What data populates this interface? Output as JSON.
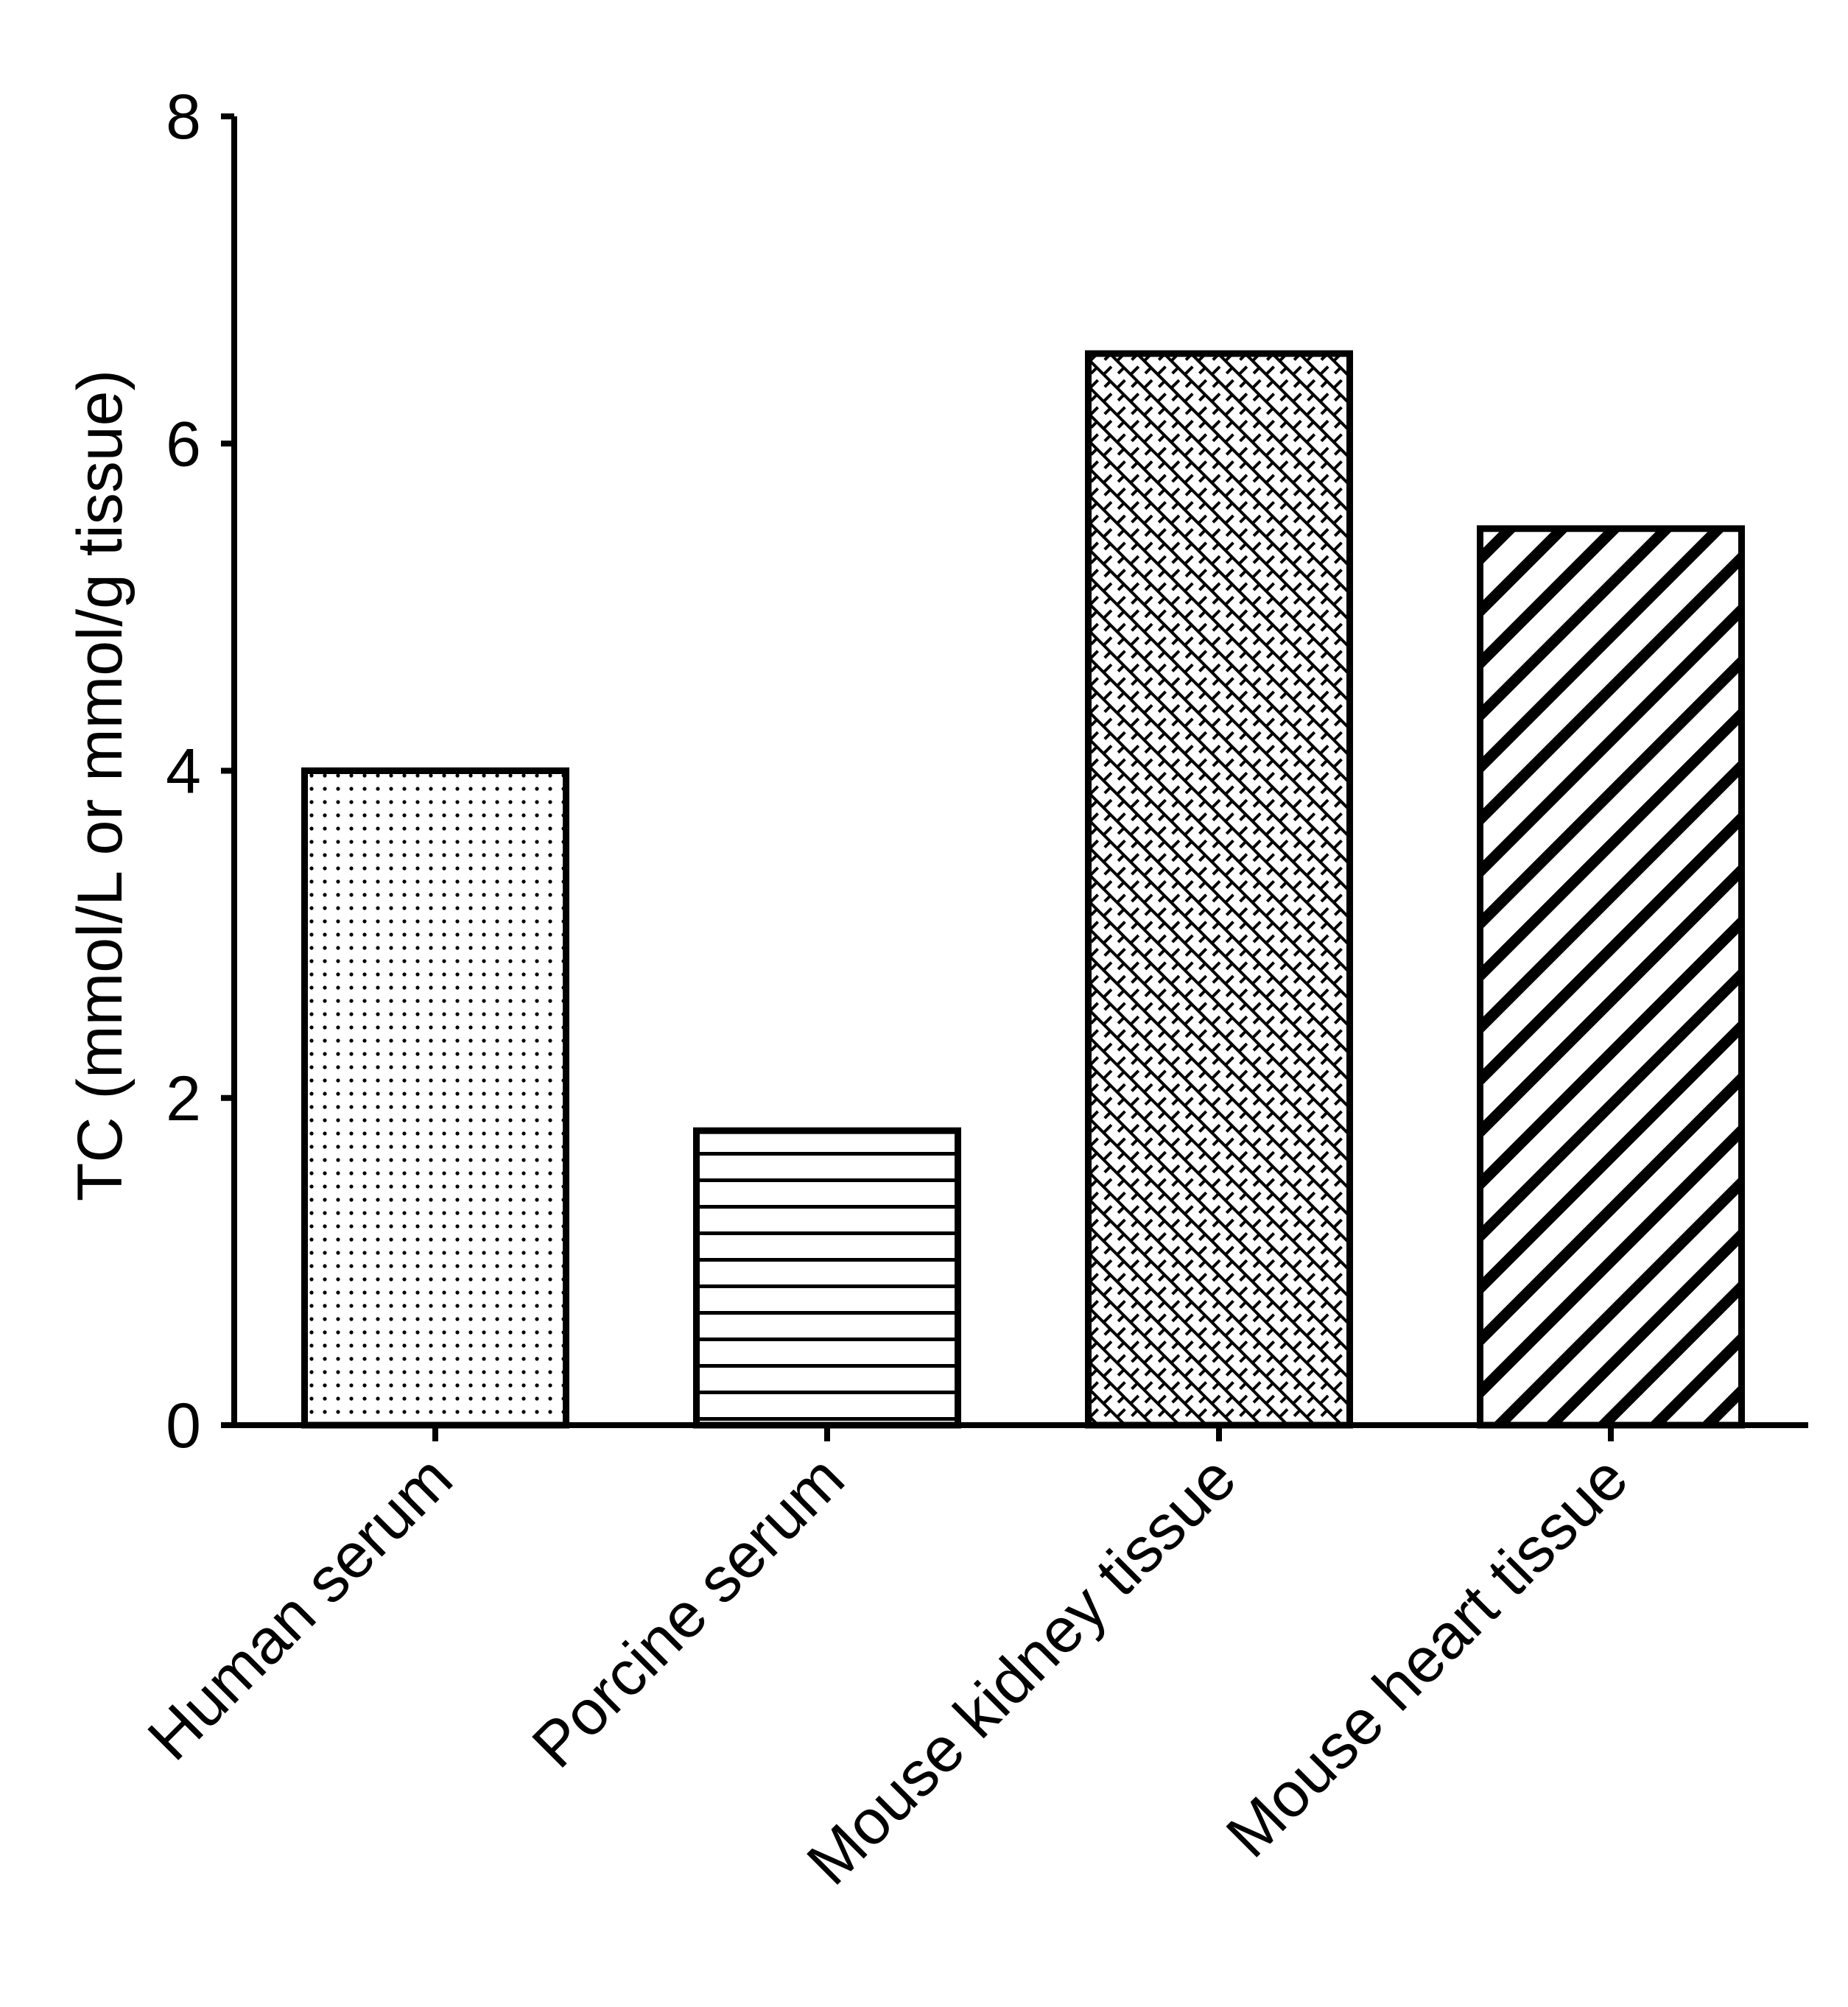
{
  "chart_data": {
    "type": "bar",
    "title": "",
    "xlabel": "",
    "ylabel": "TC (mmol/L or mmol/g tissue)",
    "categories": [
      "Human serum",
      "Porcine serum",
      "Mouse kidney tissue",
      "Mouse heart tissue"
    ],
    "values": [
      4.0,
      1.8,
      6.55,
      5.48
    ],
    "patterns": [
      "dots",
      "horizontal-lines",
      "crosshatch",
      "diagonal-stripes"
    ],
    "ylim": [
      0,
      8
    ],
    "yticks": [
      0,
      2,
      4,
      6,
      8
    ],
    "ytick_labels": [
      "0",
      "2",
      "4",
      "6",
      "8"
    ],
    "grid": false,
    "legend": "none",
    "colors": {
      "bar_fill": "#ffffff",
      "bar_stroke": "#000000",
      "axis": "#000000"
    }
  }
}
